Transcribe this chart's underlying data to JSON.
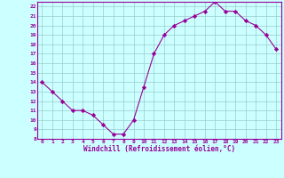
{
  "x": [
    0,
    1,
    2,
    3,
    4,
    5,
    6,
    7,
    8,
    9,
    10,
    11,
    12,
    13,
    14,
    15,
    16,
    17,
    18,
    19,
    20,
    21,
    22,
    23
  ],
  "y": [
    14,
    13,
    12,
    11,
    11,
    10.5,
    9.5,
    8.5,
    8.5,
    10,
    13.5,
    17,
    19,
    20,
    20.5,
    21,
    21.5,
    22.5,
    21.5,
    21.5,
    20.5,
    20,
    19,
    17.5
  ],
  "line_color": "#990099",
  "marker": "D",
  "marker_size": 2.2,
  "bg_color": "#ccffff",
  "grid_color": "#99cccc",
  "xlabel": "Windchill (Refroidissement éolien,°C)",
  "tick_color": "#990099",
  "ylim": [
    8,
    22.5
  ],
  "xlim": [
    -0.5,
    23.5
  ],
  "yticks": [
    8,
    9,
    10,
    11,
    12,
    13,
    14,
    15,
    16,
    17,
    18,
    19,
    20,
    21,
    22
  ],
  "xticks": [
    0,
    1,
    2,
    3,
    4,
    5,
    6,
    7,
    8,
    9,
    10,
    11,
    12,
    13,
    14,
    15,
    16,
    17,
    18,
    19,
    20,
    21,
    22,
    23
  ],
  "spine_color": "#990099",
  "figsize": [
    3.2,
    2.0
  ],
  "dpi": 100
}
